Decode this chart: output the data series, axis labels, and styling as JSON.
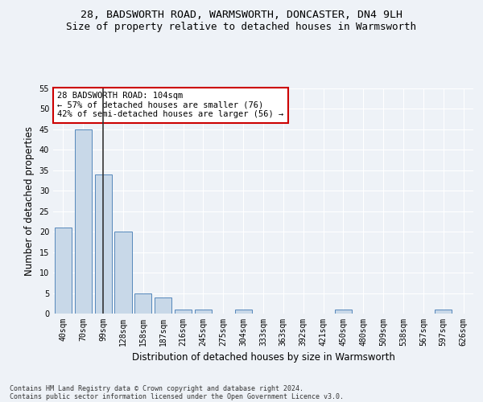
{
  "title1": "28, BADSWORTH ROAD, WARMSWORTH, DONCASTER, DN4 9LH",
  "title2": "Size of property relative to detached houses in Warmsworth",
  "xlabel": "Distribution of detached houses by size in Warmsworth",
  "ylabel": "Number of detached properties",
  "categories": [
    "40sqm",
    "70sqm",
    "99sqm",
    "128sqm",
    "158sqm",
    "187sqm",
    "216sqm",
    "245sqm",
    "275sqm",
    "304sqm",
    "333sqm",
    "363sqm",
    "392sqm",
    "421sqm",
    "450sqm",
    "480sqm",
    "509sqm",
    "538sqm",
    "567sqm",
    "597sqm",
    "626sqm"
  ],
  "values": [
    21,
    45,
    34,
    20,
    5,
    4,
    1,
    1,
    0,
    1,
    0,
    0,
    0,
    0,
    1,
    0,
    0,
    0,
    0,
    1,
    0
  ],
  "bar_color": "#c8d8e8",
  "bar_edge_color": "#5588bb",
  "vline_x_index": 2,
  "vline_color": "#333333",
  "annotation_text": "28 BADSWORTH ROAD: 104sqm\n← 57% of detached houses are smaller (76)\n42% of semi-detached houses are larger (56) →",
  "annotation_box_color": "#ffffff",
  "annotation_box_edge_color": "#cc0000",
  "ylim": [
    0,
    55
  ],
  "yticks": [
    0,
    5,
    10,
    15,
    20,
    25,
    30,
    35,
    40,
    45,
    50,
    55
  ],
  "footer1": "Contains HM Land Registry data © Crown copyright and database right 2024.",
  "footer2": "Contains public sector information licensed under the Open Government Licence v3.0.",
  "bg_color": "#eef2f7",
  "grid_color": "#ffffff",
  "title_fontsize": 9.5,
  "subtitle_fontsize": 9,
  "axis_label_fontsize": 8.5,
  "tick_fontsize": 7,
  "footer_fontsize": 6,
  "annotation_fontsize": 7.5
}
